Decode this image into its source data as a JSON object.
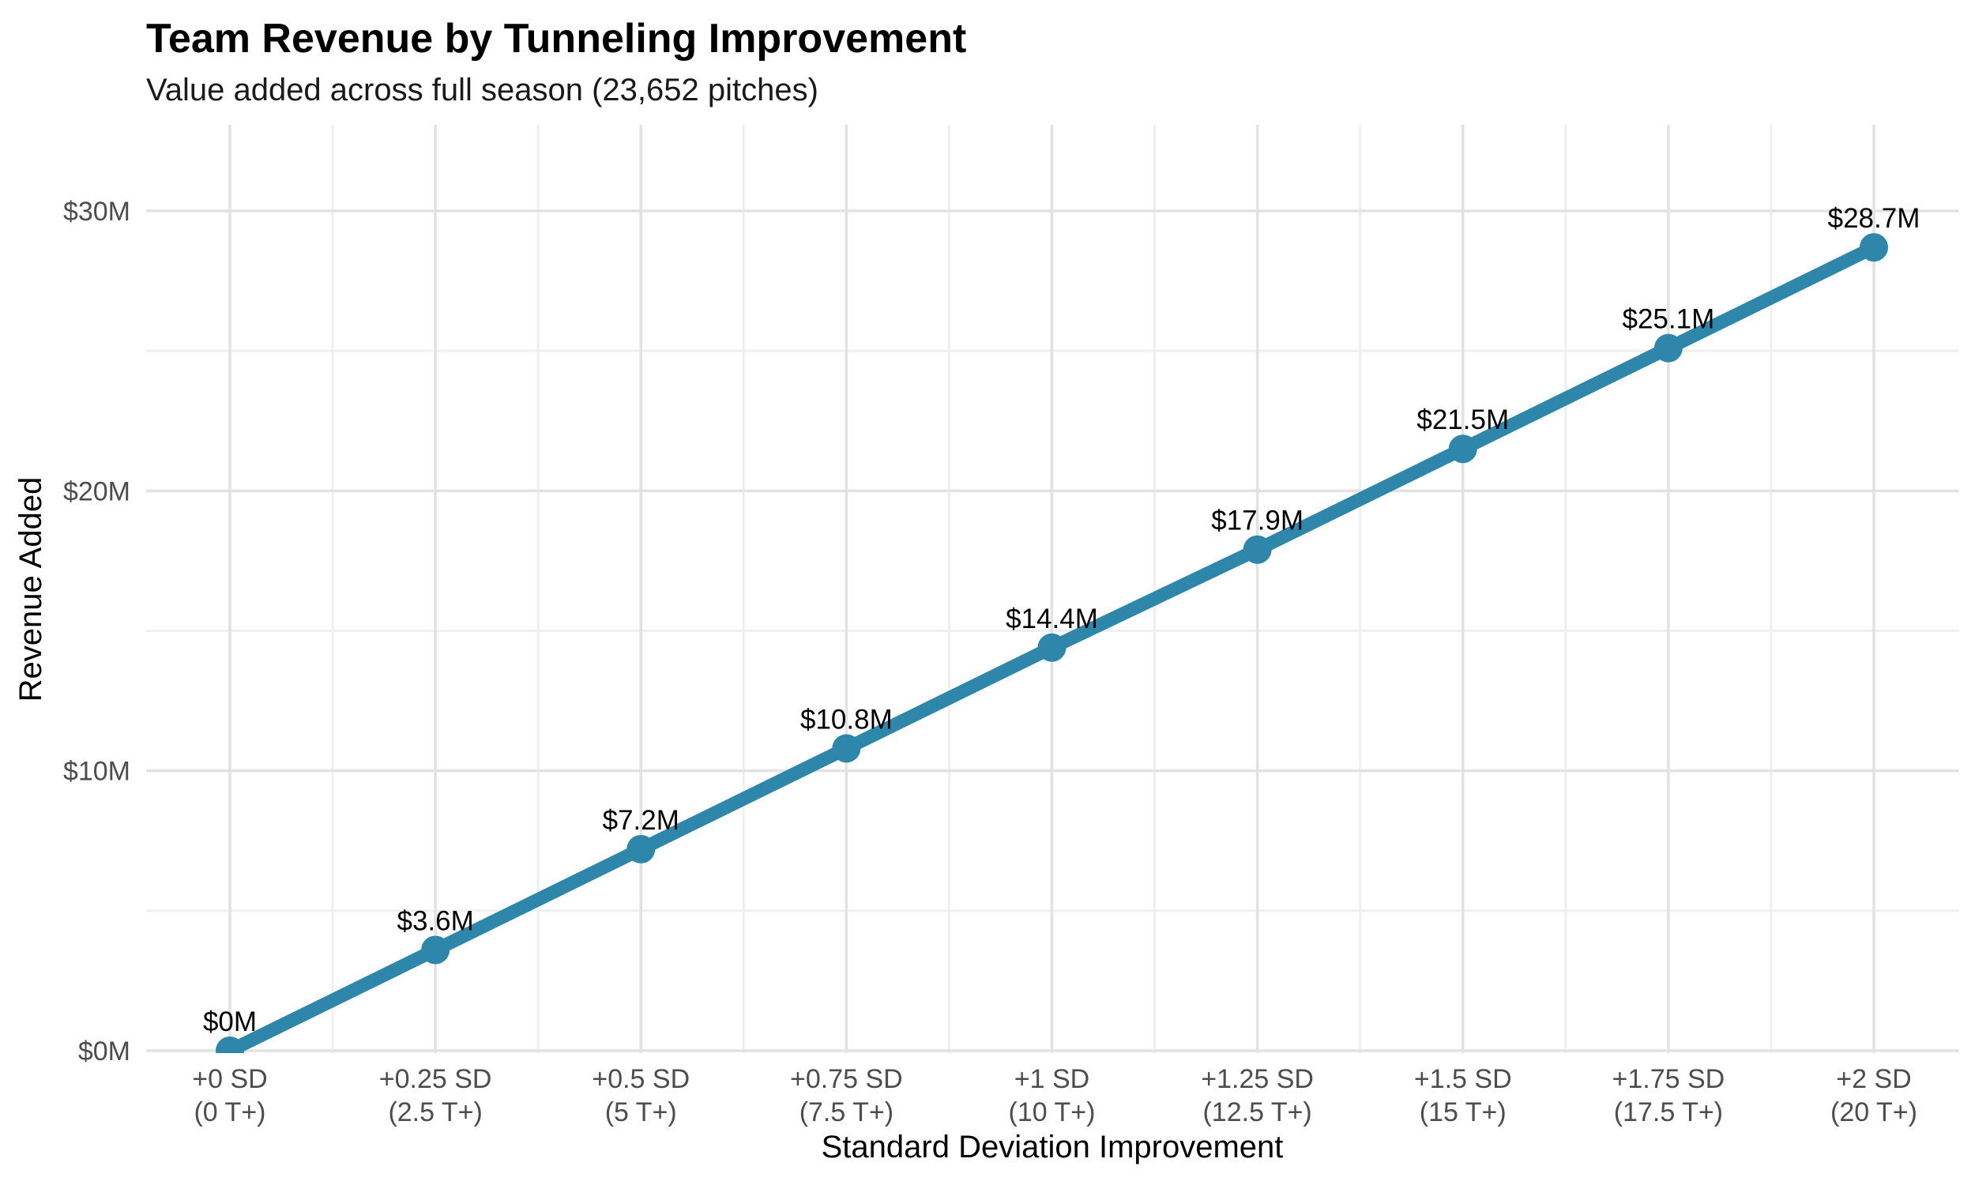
{
  "chart_data": {
    "type": "line",
    "title": "Team Revenue by Tunneling Improvement",
    "subtitle": "Value added across full season (23,652 pitches)",
    "xlabel": "Standard Deviation Improvement",
    "ylabel": "Revenue Added",
    "categories": [
      {
        "sd": "+0 SD",
        "tunnels": "(0 T+)"
      },
      {
        "sd": "+0.25 SD",
        "tunnels": "(2.5 T+)"
      },
      {
        "sd": "+0.5 SD",
        "tunnels": "(5 T+)"
      },
      {
        "sd": "+0.75 SD",
        "tunnels": "(7.5 T+)"
      },
      {
        "sd": "+1 SD",
        "tunnels": "(10 T+)"
      },
      {
        "sd": "+1.25 SD",
        "tunnels": "(12.5 T+)"
      },
      {
        "sd": "+1.5 SD",
        "tunnels": "(15 T+)"
      },
      {
        "sd": "+1.75 SD",
        "tunnels": "(17.5 T+)"
      },
      {
        "sd": "+2 SD",
        "tunnels": "(20 T+)"
      }
    ],
    "values": [
      0,
      3.6,
      7.2,
      10.8,
      14.4,
      17.9,
      21.5,
      25.1,
      28.7
    ],
    "point_labels": [
      "$0M",
      "$3.6M",
      "$7.2M",
      "$10.8M",
      "$14.4M",
      "$17.9M",
      "$21.5M",
      "$25.1M",
      "$28.7M"
    ],
    "y_axis": {
      "ticks": [
        {
          "value": 0,
          "label": "$0M"
        },
        {
          "value": 10,
          "label": "$10M"
        },
        {
          "value": 20,
          "label": "$20M"
        },
        {
          "value": 30,
          "label": "$30M"
        }
      ],
      "minor_values": [
        5,
        15,
        25
      ],
      "range": [
        0,
        31.5
      ]
    },
    "grid": true,
    "legend": false,
    "colors": {
      "series": "#2E86AB",
      "point": "#2E86AB",
      "title_text": "#000000",
      "subtitle_text": "#1A1A1A",
      "axis_title_text": "#000000",
      "tick_text": "#4D4D4D",
      "point_label_text": "#000000",
      "grid_major": "#E2E2E2",
      "grid_minor": "#EFEFEF",
      "background": "#FFFFFF"
    }
  }
}
